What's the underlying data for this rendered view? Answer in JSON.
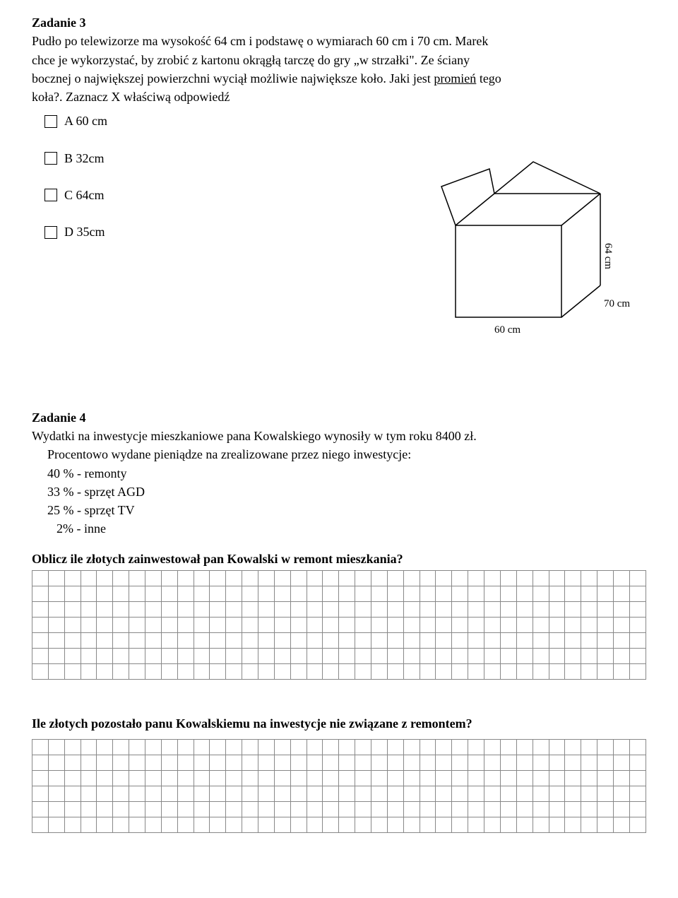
{
  "task3": {
    "title": "Zadanie 3",
    "line1": "Pudło po telewizorze ma wysokość 64 cm i podstawę o wymiarach 60 cm i 70 cm. Marek",
    "line2": "chce je wykorzystać,  by zrobić z kartonu okrągłą tarczę do gry „w strzałki\". Ze ściany",
    "line3_a": "bocznej o największej powierzchni wyciął możliwie największe koło. Jaki jest ",
    "line3_u": "promień",
    "line3_b": " tego",
    "line4": "koła?. Zaznacz X właściwą odpowiedź",
    "options": {
      "a": "A  60 cm",
      "b": "B 32cm",
      "c": "C  64cm",
      "d": "D  35cm"
    },
    "box": {
      "h_label": "64 cm",
      "w_label": "60 cm",
      "d_label": "70 cm"
    }
  },
  "task4": {
    "title": "Zadanie 4",
    "line1": "Wydatki na inwestycje mieszkaniowe pana Kowalskiego wynosiły w tym roku 8400 zł.",
    "line2": "Procentowo wydane pieniądze na zrealizowane przez niego inwestycje:",
    "l_40": "40 % - remonty",
    "l_33": "33 % - sprzęt AGD",
    "l_25": "25 % - sprzęt TV",
    "l_2": "2% - inne",
    "q1": "Oblicz ile złotych zainwestował pan Kowalski w remont mieszkania?",
    "q2": "Ile złotych pozostało panu Kowalskiemu na inwestycje nie związane z remontem?"
  },
  "grids": {
    "cols": 38,
    "rows1": 7,
    "rows2": 6
  }
}
